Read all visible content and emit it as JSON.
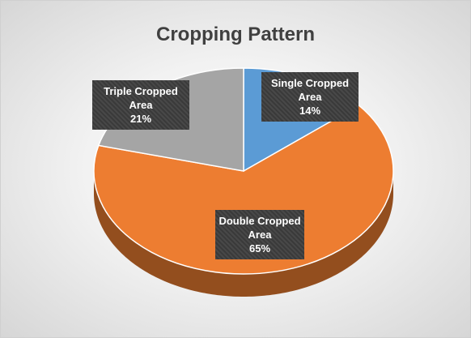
{
  "chart_data": {
    "type": "pie3d",
    "title": "Cropping Pattern",
    "categories": [
      "Single Cropped Area",
      "Double Cropped Area",
      "Triple Cropped Area"
    ],
    "values": [
      14,
      65,
      21
    ],
    "value_labels": [
      "14%",
      "65%",
      "21%"
    ],
    "colors": [
      "#5b9bd5",
      "#ed7d31",
      "#a5a5a5"
    ]
  }
}
